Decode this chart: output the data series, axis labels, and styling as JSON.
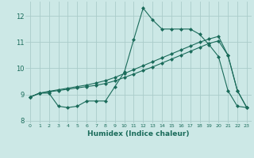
{
  "xlabel": "Humidex (Indice chaleur)",
  "background_color": "#cce8e6",
  "grid_color": "#aaccca",
  "line_color": "#1a6b5a",
  "xlim": [
    -0.5,
    23.5
  ],
  "ylim": [
    7.9,
    12.55
  ],
  "xticks": [
    0,
    1,
    2,
    3,
    4,
    5,
    6,
    7,
    8,
    9,
    10,
    11,
    12,
    13,
    14,
    15,
    16,
    17,
    18,
    19,
    20,
    21,
    22,
    23
  ],
  "yticks": [
    8,
    9,
    10,
    11,
    12
  ],
  "series1_x": [
    0,
    1,
    2,
    3,
    4,
    5,
    6,
    7,
    8,
    9,
    10,
    11,
    12,
    13,
    14,
    15,
    16,
    17,
    18,
    19,
    20,
    21,
    22,
    23
  ],
  "series1_y": [
    8.9,
    9.05,
    9.05,
    8.55,
    8.5,
    8.55,
    8.75,
    8.75,
    8.75,
    9.3,
    9.85,
    11.1,
    12.3,
    11.85,
    11.5,
    11.5,
    11.5,
    11.5,
    11.3,
    10.9,
    10.45,
    9.15,
    8.55,
    8.5
  ],
  "series2_x": [
    0,
    1,
    2,
    3,
    4,
    5,
    6,
    7,
    8,
    9,
    10,
    11,
    12,
    13,
    14,
    15,
    16,
    17,
    18,
    19,
    20,
    21,
    22,
    23
  ],
  "series2_y": [
    8.9,
    9.05,
    9.1,
    9.15,
    9.2,
    9.25,
    9.3,
    9.35,
    9.42,
    9.52,
    9.65,
    9.78,
    9.92,
    10.05,
    10.2,
    10.35,
    10.5,
    10.65,
    10.8,
    10.95,
    11.05,
    10.5,
    9.15,
    8.5
  ],
  "series3_x": [
    0,
    1,
    2,
    3,
    4,
    5,
    6,
    7,
    8,
    9,
    10,
    11,
    12,
    13,
    14,
    15,
    16,
    17,
    18,
    19,
    20,
    21,
    22,
    23
  ],
  "series3_y": [
    8.9,
    9.05,
    9.12,
    9.18,
    9.24,
    9.3,
    9.36,
    9.44,
    9.53,
    9.65,
    9.8,
    9.95,
    10.1,
    10.25,
    10.4,
    10.55,
    10.7,
    10.85,
    11.0,
    11.12,
    11.22,
    10.5,
    9.15,
    8.5
  ]
}
